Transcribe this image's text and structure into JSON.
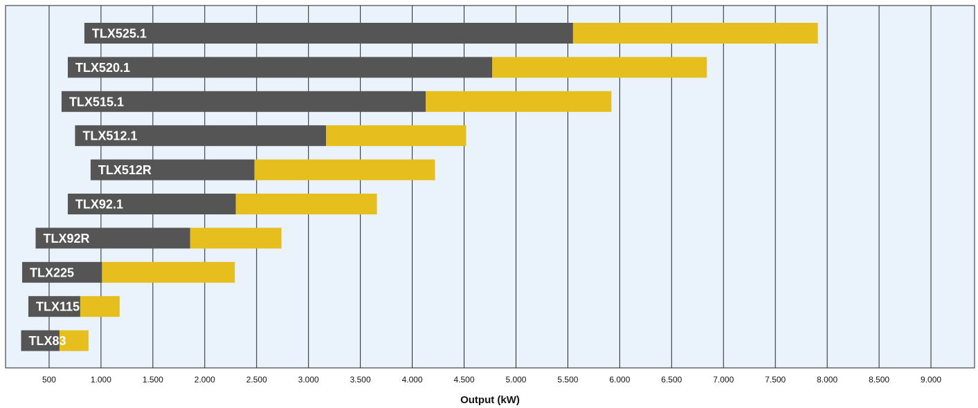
{
  "chart_data": {
    "type": "bar",
    "orientation": "horizontal",
    "stacked": true,
    "xlabel": "Output (kW)",
    "xlim": [
      80,
      9420
    ],
    "ticks": [
      500,
      1000,
      1500,
      2000,
      2500,
      3000,
      3500,
      4000,
      4500,
      5000,
      5500,
      6000,
      6500,
      7000,
      7500,
      8000,
      8500,
      9000
    ],
    "tick_labels": [
      "500",
      "1.000",
      "1.500",
      "2.000",
      "2.500",
      "3.000",
      "3.500",
      "4.000",
      "4.500",
      "5.000",
      "5.500",
      "6.000",
      "6.500",
      "7.000",
      "7.500",
      "8.000",
      "8.500",
      "9.000"
    ],
    "grid": true,
    "categories": [
      "TLX525.1",
      "TLX520.1",
      "TLX515.1",
      "TLX512.1",
      "TLX512R",
      "TLX92.1",
      "TLX92R",
      "TLX225",
      "TLX115",
      "TLX83"
    ],
    "bars": [
      {
        "label": "TLX525.1",
        "start": 840,
        "split": 5550,
        "end": 7910
      },
      {
        "label": "TLX520.1",
        "start": 680,
        "split": 4770,
        "end": 6840
      },
      {
        "label": "TLX515.1",
        "start": 620,
        "split": 4130,
        "end": 5920
      },
      {
        "label": "TLX512.1",
        "start": 750,
        "split": 3170,
        "end": 4520
      },
      {
        "label": "TLX512R",
        "start": 900,
        "split": 2480,
        "end": 4220
      },
      {
        "label": "TLX92.1",
        "start": 680,
        "split": 2300,
        "end": 3660
      },
      {
        "label": "TLX92R",
        "start": 370,
        "split": 1860,
        "end": 2740
      },
      {
        "label": "TLX225",
        "start": 240,
        "split": 1010,
        "end": 2290
      },
      {
        "label": "TLX115",
        "start": 300,
        "split": 800,
        "end": 1180
      },
      {
        "label": "TLX83",
        "start": 230,
        "split": 600,
        "end": 880
      }
    ],
    "colors": {
      "lower": "#555555",
      "upper": "#e6bf1f",
      "plot_background": "#eaf3fb",
      "grid": "#222222"
    }
  }
}
